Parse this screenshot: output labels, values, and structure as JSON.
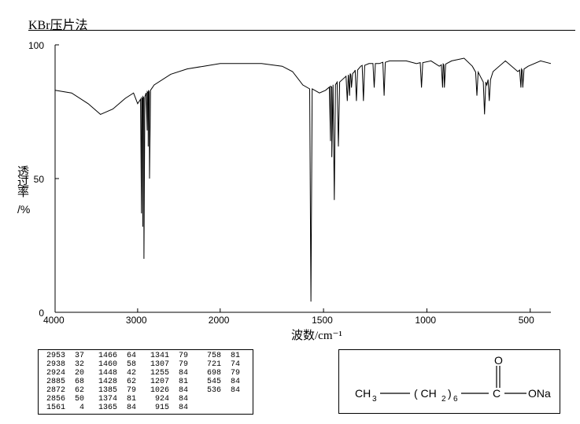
{
  "title": "KBr压片法",
  "ylabel_cn": "透过率",
  "ylabel_unit": "/%",
  "xlabel": "波数/cm⁻¹",
  "chart": {
    "type": "line",
    "background_color": "#ffffff",
    "line_color": "#000000",
    "line_width": 1,
    "xlim": [
      4000,
      400
    ],
    "ylim": [
      0,
      100
    ],
    "xticks": [
      4000,
      3000,
      2000,
      1500,
      1000,
      500
    ],
    "yticks": [
      0,
      50,
      100
    ],
    "x_breakpoint": 2000,
    "axis_color": "#000000",
    "tick_fontsize": 12,
    "label_fontsize": 15
  },
  "peaks": [
    {
      "wn": 2953,
      "t": 37
    },
    {
      "wn": 2938,
      "t": 32
    },
    {
      "wn": 2924,
      "t": 20
    },
    {
      "wn": 2885,
      "t": 68
    },
    {
      "wn": 2872,
      "t": 62
    },
    {
      "wn": 2856,
      "t": 50
    },
    {
      "wn": 1561,
      "t": 4
    },
    {
      "wn": 1466,
      "t": 64
    },
    {
      "wn": 1460,
      "t": 58
    },
    {
      "wn": 1448,
      "t": 42
    },
    {
      "wn": 1428,
      "t": 62
    },
    {
      "wn": 1385,
      "t": 79
    },
    {
      "wn": 1374,
      "t": 81
    },
    {
      "wn": 1365,
      "t": 84
    },
    {
      "wn": 1341,
      "t": 79
    },
    {
      "wn": 1307,
      "t": 79
    },
    {
      "wn": 1255,
      "t": 84
    },
    {
      "wn": 1207,
      "t": 81
    },
    {
      "wn": 1026,
      "t": 84
    },
    {
      "wn": 924,
      "t": 84
    },
    {
      "wn": 915,
      "t": 84
    },
    {
      "wn": 758,
      "t": 81
    },
    {
      "wn": 721,
      "t": 74
    },
    {
      "wn": 698,
      "t": 79
    },
    {
      "wn": 545,
      "t": 84
    },
    {
      "wn": 536,
      "t": 84
    }
  ],
  "baseline": [
    {
      "wn": 4000,
      "t": 83
    },
    {
      "wn": 3800,
      "t": 82
    },
    {
      "wn": 3600,
      "t": 78
    },
    {
      "wn": 3450,
      "t": 74
    },
    {
      "wn": 3300,
      "t": 76
    },
    {
      "wn": 3150,
      "t": 80
    },
    {
      "wn": 3050,
      "t": 82
    },
    {
      "wn": 3000,
      "t": 78
    },
    {
      "wn": 2800,
      "t": 85
    },
    {
      "wn": 2600,
      "t": 89
    },
    {
      "wn": 2400,
      "t": 91
    },
    {
      "wn": 2200,
      "t": 92
    },
    {
      "wn": 2000,
      "t": 93
    },
    {
      "wn": 1800,
      "t": 93
    },
    {
      "wn": 1700,
      "t": 92
    },
    {
      "wn": 1650,
      "t": 90
    },
    {
      "wn": 1600,
      "t": 85
    },
    {
      "wn": 1520,
      "t": 82
    },
    {
      "wn": 1490,
      "t": 83
    },
    {
      "wn": 1350,
      "t": 90
    },
    {
      "wn": 1320,
      "t": 92
    },
    {
      "wn": 1280,
      "t": 93
    },
    {
      "wn": 1230,
      "t": 93
    },
    {
      "wn": 1180,
      "t": 94
    },
    {
      "wn": 1100,
      "t": 94
    },
    {
      "wn": 1050,
      "t": 93
    },
    {
      "wn": 980,
      "t": 94
    },
    {
      "wn": 940,
      "t": 92
    },
    {
      "wn": 880,
      "t": 94
    },
    {
      "wn": 820,
      "t": 95
    },
    {
      "wn": 780,
      "t": 92
    },
    {
      "wn": 740,
      "t": 88
    },
    {
      "wn": 710,
      "t": 85
    },
    {
      "wn": 680,
      "t": 90
    },
    {
      "wn": 620,
      "t": 94
    },
    {
      "wn": 560,
      "t": 90
    },
    {
      "wn": 510,
      "t": 92
    },
    {
      "wn": 450,
      "t": 94
    },
    {
      "wn": 400,
      "t": 93
    }
  ],
  "table_rows": [
    [
      [
        "2953",
        "37"
      ],
      [
        "1466",
        "64"
      ],
      [
        "1341",
        "79"
      ],
      [
        "758",
        "81"
      ]
    ],
    [
      [
        "2938",
        "32"
      ],
      [
        "1460",
        "58"
      ],
      [
        "1307",
        "79"
      ],
      [
        "721",
        "74"
      ]
    ],
    [
      [
        "2924",
        "20"
      ],
      [
        "1448",
        "42"
      ],
      [
        "1255",
        "84"
      ],
      [
        "698",
        "79"
      ]
    ],
    [
      [
        "2885",
        "68"
      ],
      [
        "1428",
        "62"
      ],
      [
        "1207",
        "81"
      ],
      [
        "545",
        "84"
      ]
    ],
    [
      [
        "2872",
        "62"
      ],
      [
        "1385",
        "79"
      ],
      [
        "1026",
        "84"
      ],
      [
        "536",
        "84"
      ]
    ],
    [
      [
        "2856",
        "50"
      ],
      [
        "1374",
        "81"
      ],
      [
        "924",
        "84"
      ],
      [
        "",
        ""
      ]
    ],
    [
      [
        "1561",
        "4"
      ],
      [
        "1365",
        "84"
      ],
      [
        "915",
        "84"
      ],
      [
        "",
        ""
      ]
    ]
  ],
  "structure": {
    "text_left": "CH₃",
    "text_mid": "( CH₂ )₆",
    "text_right": "ONa",
    "font_family": "Arial",
    "font_size": 14,
    "line_color": "#000000"
  }
}
